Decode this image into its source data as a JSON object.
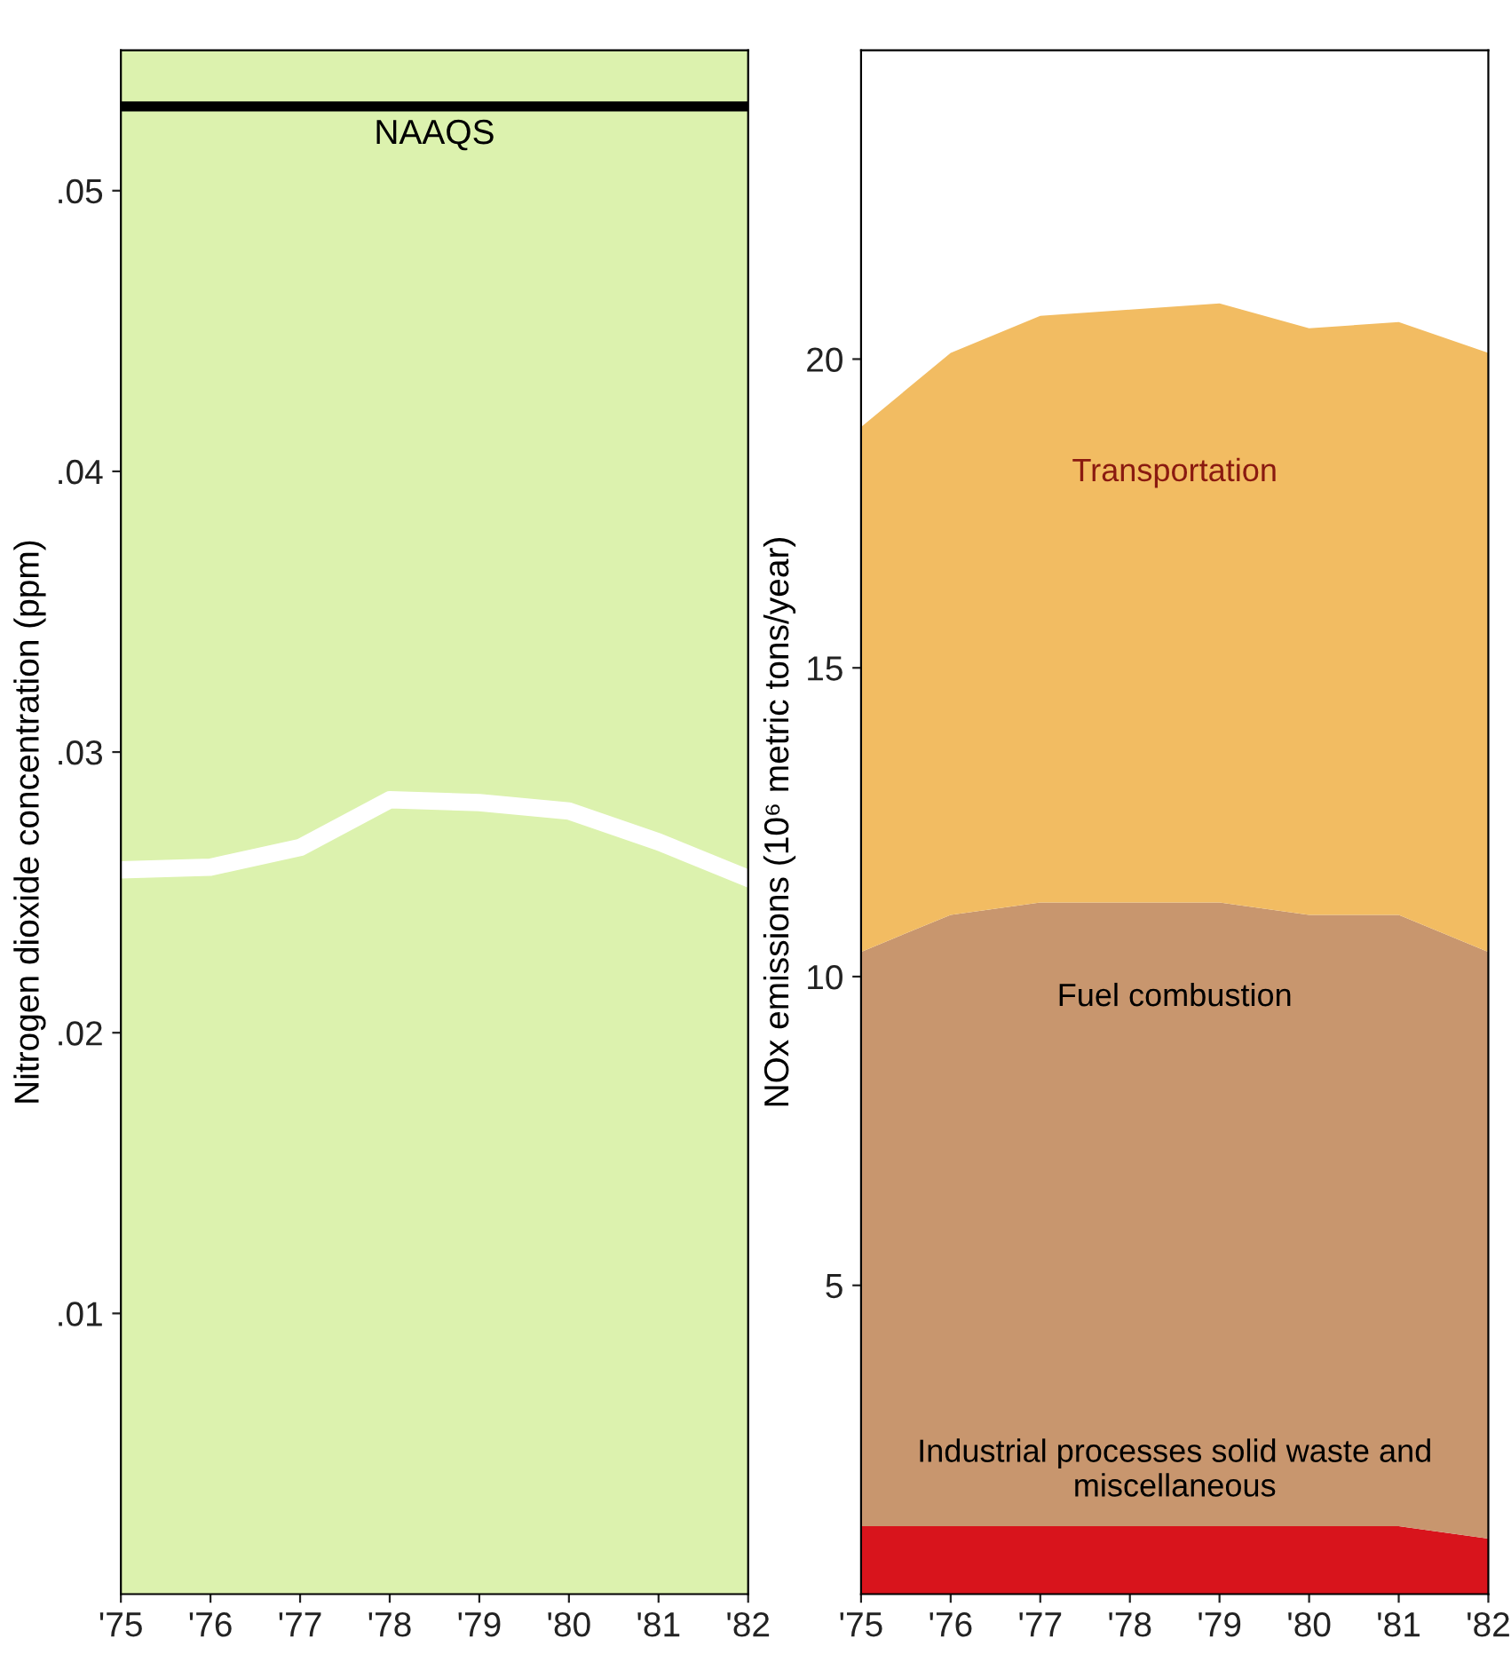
{
  "chart_data": [
    {
      "type": "line",
      "ylabel": "Nitrogen dioxide concentration (ppm)",
      "x": [
        1975,
        1976,
        1977,
        1978,
        1979,
        1980,
        1981,
        1982
      ],
      "series": [
        {
          "color": "#ffffff",
          "values": [
            0.0258,
            0.0259,
            0.0266,
            0.0283,
            0.0282,
            0.0279,
            0.0268,
            0.0255
          ]
        }
      ],
      "xlim": [
        1975,
        1982
      ],
      "ylim": [
        0,
        0.055
      ],
      "xticks": [
        {
          "value": 1975,
          "label": "'75"
        },
        {
          "value": 1976,
          "label": "'76"
        },
        {
          "value": 1977,
          "label": "'77"
        },
        {
          "value": 1978,
          "label": "'78"
        },
        {
          "value": 1979,
          "label": "'79"
        },
        {
          "value": 1980,
          "label": "'80"
        },
        {
          "value": 1981,
          "label": "'81"
        },
        {
          "value": 1982,
          "label": "'82"
        }
      ],
      "yticks": [
        {
          "value": 0.01,
          "label": ".01"
        },
        {
          "value": 0.02,
          "label": ".02"
        },
        {
          "value": 0.03,
          "label": ".03"
        },
        {
          "value": 0.04,
          "label": ".04"
        },
        {
          "value": 0.05,
          "label": ".05"
        }
      ],
      "ref_lines": [
        {
          "axis": "y",
          "value": 0.053,
          "label": "NAAQS",
          "color": "#000000"
        }
      ],
      "grid": false,
      "legend": false
    },
    {
      "type": "area",
      "stacked": true,
      "ylabel": "NOx emissions (10⁶ metric tons/year)",
      "x": [
        1975,
        1976,
        1977,
        1978,
        1979,
        1980,
        1981,
        1982
      ],
      "series": [
        {
          "name": "Industrial processes solid waste and miscellaneous",
          "color": "#d8141c",
          "values": [
            1.1,
            1.1,
            1.1,
            1.1,
            1.1,
            1.1,
            1.1,
            0.9
          ]
        },
        {
          "name": "Fuel combustion",
          "color": "#c8966e",
          "values": [
            9.3,
            9.9,
            10.1,
            10.1,
            10.1,
            9.9,
            9.9,
            9.5
          ]
        },
        {
          "name": "Transportation",
          "color": "#f2bc62",
          "values": [
            8.5,
            9.1,
            9.5,
            9.6,
            9.7,
            9.5,
            9.6,
            9.7
          ]
        }
      ],
      "xlim": [
        1975,
        1982
      ],
      "ylim": [
        0,
        25
      ],
      "xticks": [
        {
          "value": 1975,
          "label": "'75"
        },
        {
          "value": 1976,
          "label": "'76"
        },
        {
          "value": 1977,
          "label": "'77"
        },
        {
          "value": 1978,
          "label": "'78"
        },
        {
          "value": 1979,
          "label": "'79"
        },
        {
          "value": 1980,
          "label": "'80"
        },
        {
          "value": 1981,
          "label": "'81"
        },
        {
          "value": 1982,
          "label": "'82"
        }
      ],
      "yticks": [
        5,
        10,
        15,
        20
      ],
      "grid": false,
      "legend": false
    }
  ]
}
